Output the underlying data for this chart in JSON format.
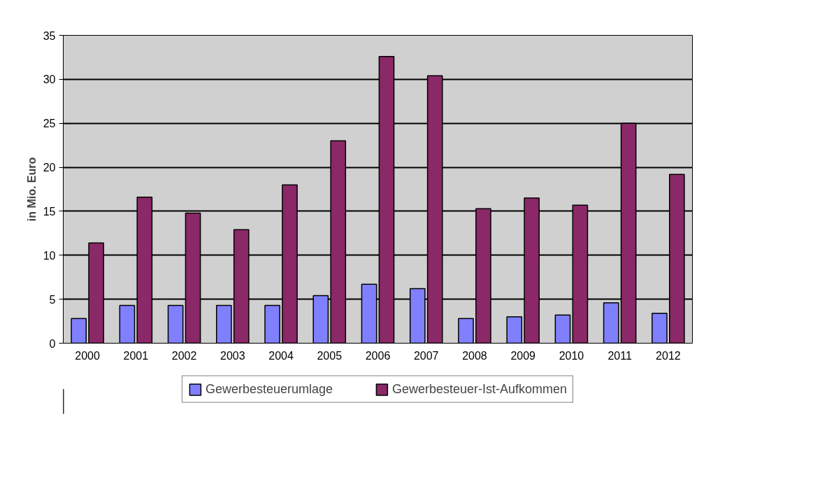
{
  "chart_data": {
    "type": "bar",
    "ylabel": "in Mio. Euro",
    "categories": [
      "2000",
      "2001",
      "2002",
      "2003",
      "2004",
      "2005",
      "2006",
      "2007",
      "2008",
      "2009",
      "2010",
      "2011",
      "2012"
    ],
    "series": [
      {
        "name": "Gewerbesteuerumlage",
        "color": "#8080ff",
        "values": [
          2.8,
          4.3,
          4.3,
          4.3,
          4.3,
          5.4,
          6.7,
          6.2,
          2.8,
          3.0,
          3.2,
          4.6,
          3.4
        ]
      },
      {
        "name": "Gewerbesteuer-Ist-Aufkommen",
        "color": "#8b2867",
        "values": [
          11.4,
          16.6,
          14.8,
          12.9,
          18.0,
          23.0,
          32.6,
          30.4,
          15.3,
          16.5,
          15.7,
          25.0,
          19.2
        ]
      }
    ],
    "ylim": [
      0,
      35
    ],
    "yticks": [
      0,
      5,
      10,
      15,
      20,
      25,
      30,
      35
    ],
    "grid": "y",
    "legend": "bottom"
  }
}
